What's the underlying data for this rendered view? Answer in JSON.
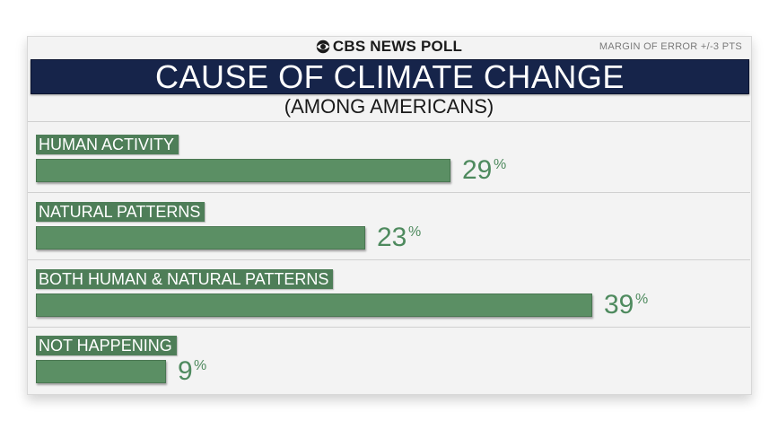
{
  "brand": "CBS NEWS POLL",
  "margin_of_error": "MARGIN OF ERROR +/-3 PTS",
  "colors": {
    "title_bar": "#16244a",
    "bar": "#5b8f64",
    "label_bg": "#4e7e58",
    "value_text": "#4e8a5e"
  },
  "icons": {
    "brand_logo": "cbs-eye-icon"
  },
  "chart_data": {
    "type": "bar",
    "orientation": "horizontal",
    "title": "CAUSE OF CLIMATE CHANGE",
    "subtitle": "(AMONG AMERICANS)",
    "categories": [
      "HUMAN ACTIVITY",
      "NATURAL PATTERNS",
      "BOTH HUMAN & NATURAL PATTERNS",
      "NOT HAPPENING"
    ],
    "values": [
      29,
      23,
      39,
      9
    ],
    "value_labels": [
      "29",
      "23",
      "39",
      "9"
    ],
    "value_suffix": "%",
    "xlim": [
      0,
      45
    ],
    "grid": false,
    "legend": "none"
  }
}
